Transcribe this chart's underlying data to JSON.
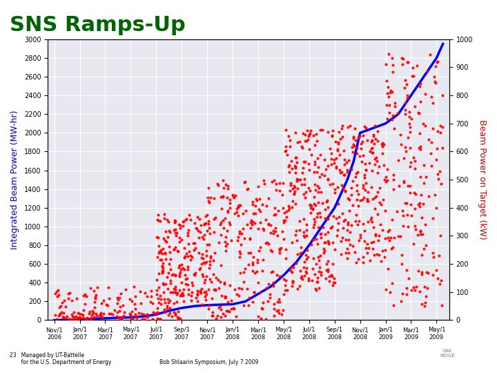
{
  "title": "SNS Ramps-Up",
  "title_color": "#006400",
  "title_fontsize": 22,
  "ylabel_left": "Integrated Beam Power (MW-hr)",
  "ylabel_right": "Beam Power on Target (kW)",
  "ylabel_left_color": "#0000CD",
  "ylabel_right_color": "#CC0000",
  "background_color": "#ffffff",
  "plot_bg_color": "#e8e8f0",
  "grid_color": "#ffffff",
  "left_ylim": [
    0,
    3000
  ],
  "right_ylim": [
    0,
    1000
  ],
  "left_yticks": [
    0,
    200,
    400,
    600,
    800,
    1000,
    1200,
    1400,
    1600,
    1800,
    2000,
    2200,
    2400,
    2600,
    2800,
    3000
  ],
  "right_yticks": [
    0,
    100,
    200,
    300,
    400,
    500,
    600,
    700,
    800,
    900,
    1000
  ],
  "footer_left": "23   Managed by UT-Battelle\n       for the U.S. Department of Energy",
  "footer_center": "Bob Shlaarin Symposium, July 7 2009",
  "x_tick_labels": [
    "Nov/1\n2006",
    "Jan/1\n2007",
    "Mar/1\n2007",
    "May/1\n2007",
    "Jul/1\n2007",
    "Sep/1\n2007",
    "Nov/1\n2007",
    "Jan/1\n2008",
    "Mar/1\n2008",
    "May/1\n2008",
    "Jul/1\n2008",
    "Sep/1\n2008",
    "Nov/1\n2008",
    "Jan/1\n2009",
    "Mar/1\n2009",
    "May/1\n2009"
  ],
  "x_tick_positions": [
    0,
    2,
    4,
    6,
    8,
    10,
    12,
    14,
    16,
    18,
    20,
    22,
    24,
    26,
    28,
    30
  ],
  "x_lim": [
    -0.5,
    31
  ],
  "blue_line_x": [
    0,
    1,
    2,
    2.5,
    3,
    4,
    5,
    6,
    7,
    8,
    8.5,
    9,
    10,
    11,
    12,
    13,
    14,
    15,
    16,
    17,
    18,
    19,
    20,
    21,
    22,
    23,
    23.5,
    24,
    25,
    26,
    27,
    27.5,
    28,
    29,
    30,
    30.5
  ],
  "blue_line_y": [
    0,
    2,
    5,
    8,
    15,
    20,
    25,
    30,
    40,
    60,
    80,
    100,
    130,
    150,
    160,
    165,
    170,
    200,
    280,
    360,
    480,
    620,
    800,
    1000,
    1200,
    1500,
    1700,
    2000,
    2050,
    2100,
    2200,
    2300,
    2400,
    2600,
    2800,
    2950
  ]
}
